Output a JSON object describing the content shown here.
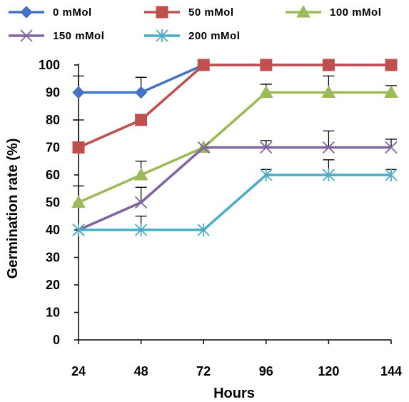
{
  "chart_data": {
    "type": "line",
    "xlabel": "Hours",
    "ylabel": "Germination  rate (%)",
    "categories": [
      "24",
      "48",
      "72",
      "96",
      "120",
      "144"
    ],
    "ylim": [
      0,
      100
    ],
    "yticks": [
      0,
      10,
      20,
      30,
      40,
      50,
      60,
      70,
      80,
      90,
      100
    ],
    "grid": false,
    "legend_position": "top",
    "series": [
      {
        "name": "0 mMol",
        "color": "#4472C4",
        "marker": "diamond",
        "values": [
          90,
          90,
          100,
          100,
          100,
          100
        ],
        "error": [
          6,
          5.5,
          0,
          0,
          0,
          0
        ]
      },
      {
        "name": "50 mMol",
        "color": "#C0504D",
        "marker": "square",
        "values": [
          70,
          80,
          100,
          100,
          100,
          100
        ],
        "error": [
          10,
          0,
          0,
          0,
          0,
          0
        ]
      },
      {
        "name": "100 mMol",
        "color": "#9BBB59",
        "marker": "triangle",
        "values": [
          50,
          60,
          70,
          90,
          90,
          90
        ],
        "error": [
          6,
          5,
          0,
          3,
          6,
          2.5
        ]
      },
      {
        "name": "150 mMol",
        "color": "#8064A2",
        "marker": "x",
        "values": [
          40,
          50,
          70,
          70,
          70,
          70
        ],
        "error": [
          0,
          5.5,
          0,
          2.5,
          6,
          3
        ]
      },
      {
        "name": "200 mMol",
        "color": "#4BACC6",
        "marker": "star",
        "values": [
          40,
          40,
          40,
          60,
          60,
          60
        ],
        "error": [
          0,
          5,
          0,
          2,
          5.5,
          2
        ]
      }
    ]
  }
}
